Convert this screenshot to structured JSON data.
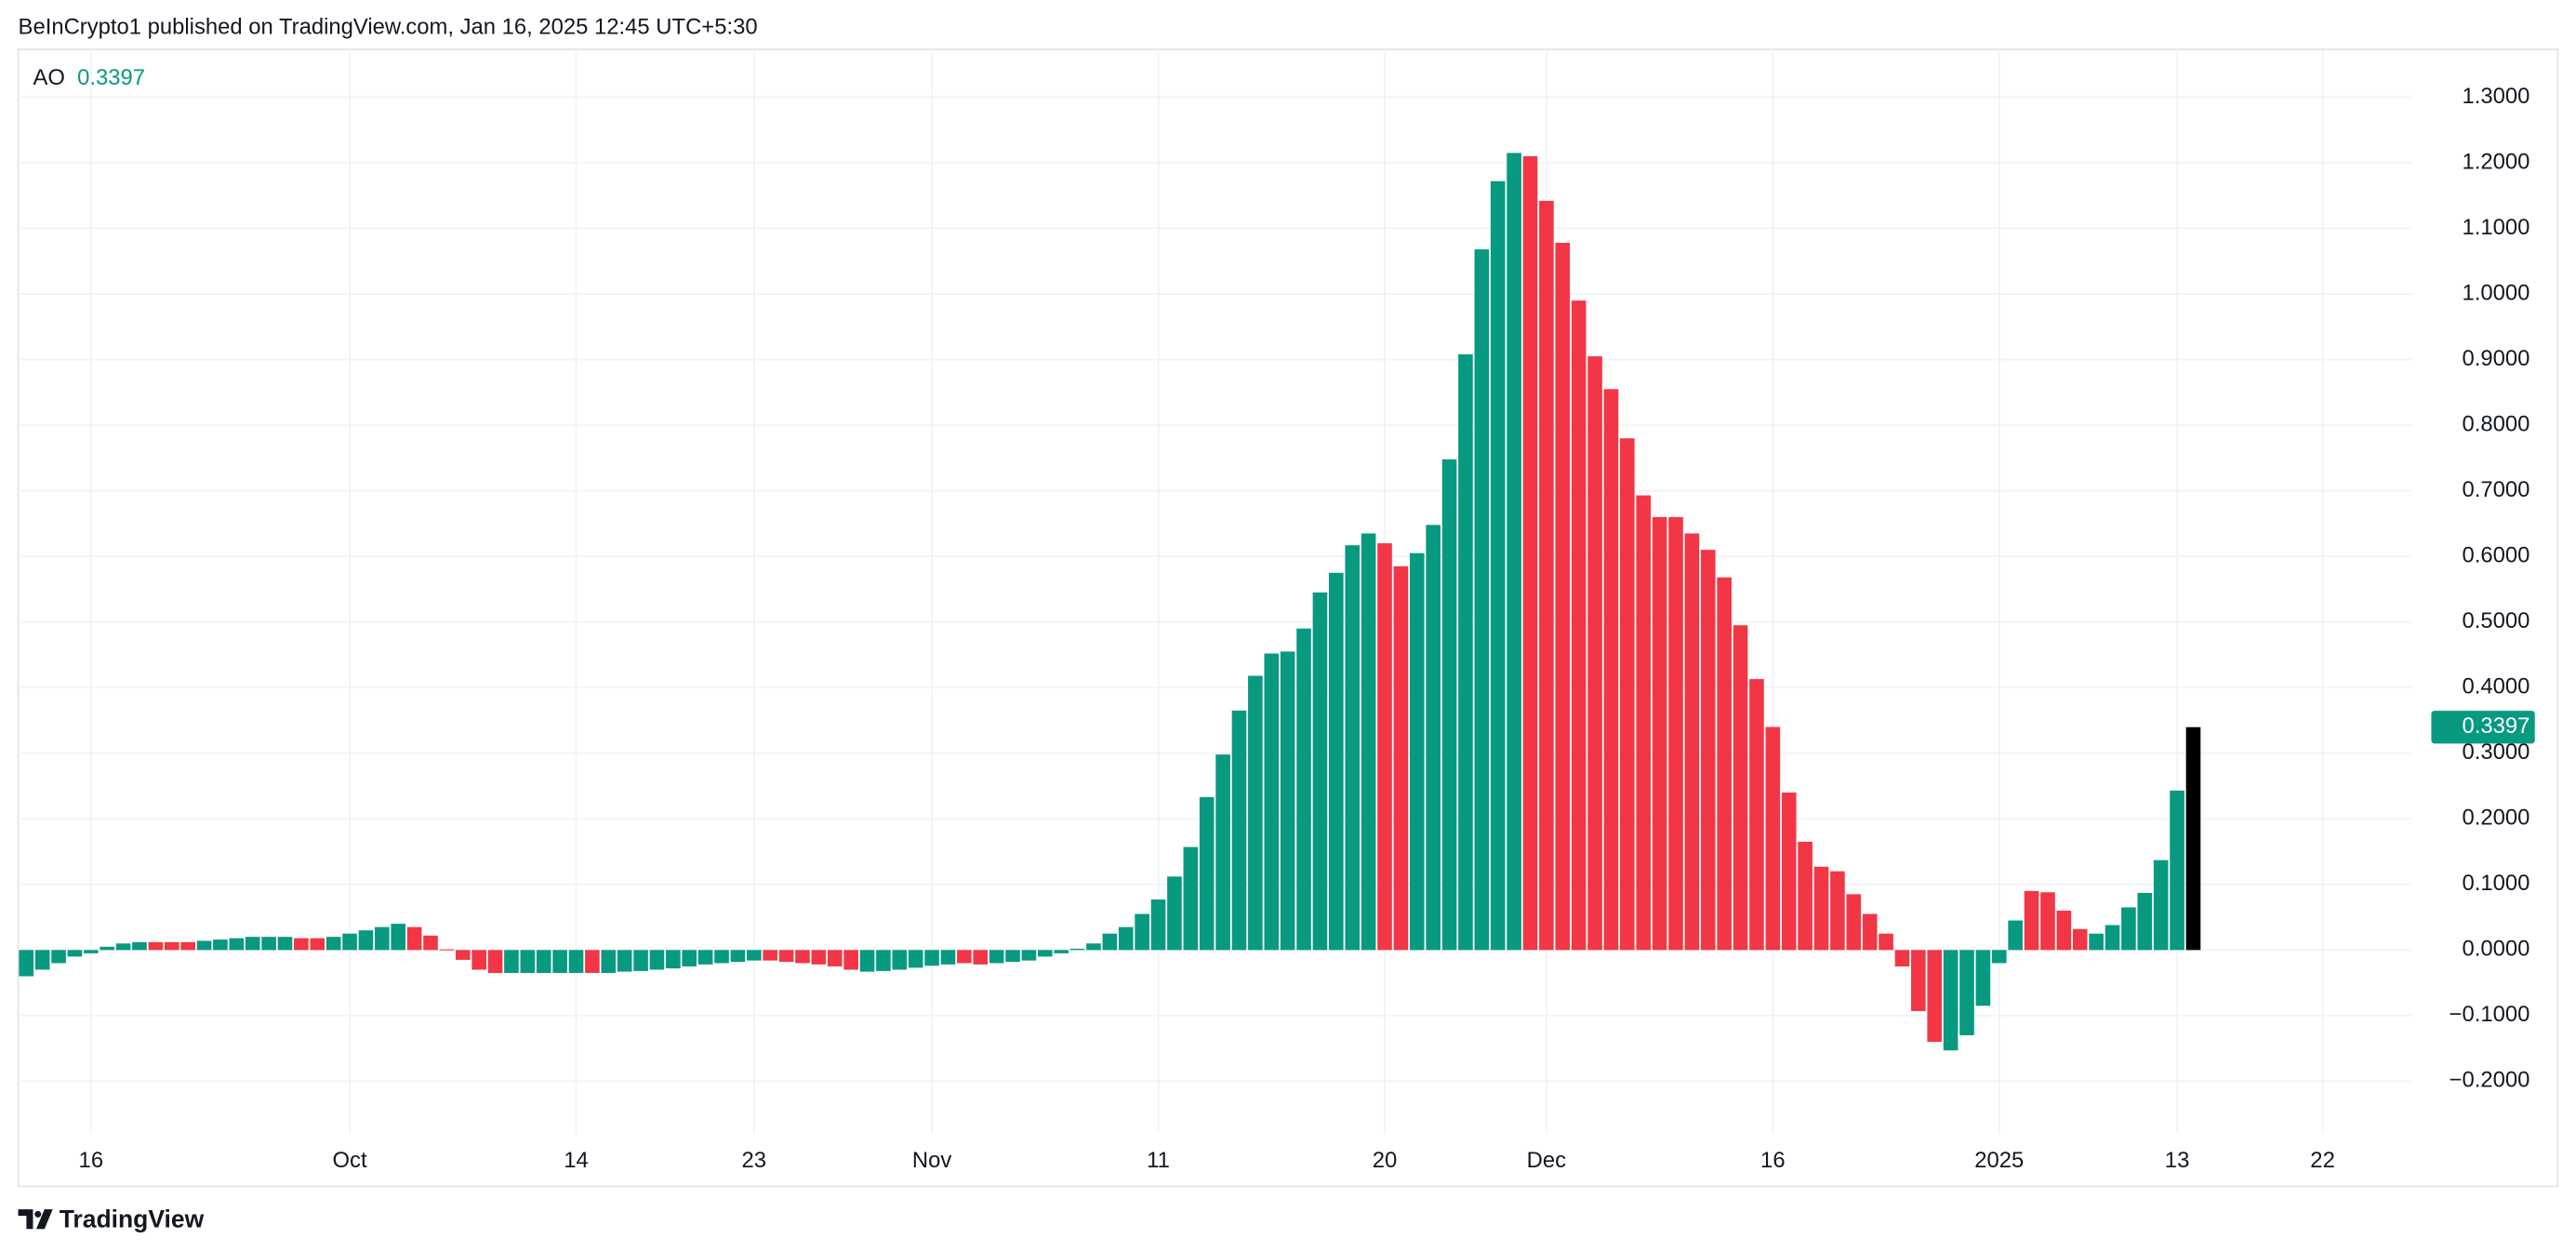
{
  "header": "BeInCrypto1 published on TradingView.com, Jan 16, 2025 12:45 UTC+5:30",
  "footer": "TradingView",
  "chart_data": {
    "type": "bar",
    "legend_label": "AO",
    "categories": [
      null,
      null,
      null,
      null,
      "16",
      null,
      null,
      null,
      null,
      null,
      null,
      null,
      null,
      null,
      null,
      null,
      null,
      null,
      null,
      null,
      "Oct",
      null,
      null,
      null,
      null,
      null,
      null,
      null,
      null,
      null,
      null,
      null,
      null,
      null,
      "14",
      null,
      null,
      null,
      null,
      null,
      null,
      null,
      null,
      null,
      null,
      "23",
      null,
      null,
      null,
      null,
      null,
      null,
      null,
      null,
      null,
      null,
      "Nov",
      null,
      null,
      null,
      null,
      null,
      null,
      null,
      null,
      null,
      null,
      null,
      null,
      null,
      "11",
      null,
      null,
      null,
      null,
      null,
      null,
      null,
      null,
      null,
      null,
      null,
      null,
      null,
      "20",
      null,
      null,
      null,
      null,
      null,
      null,
      null,
      null,
      null,
      "Dec",
      null,
      null,
      null,
      null,
      null,
      null,
      null,
      null,
      null,
      null,
      null,
      null,
      null,
      "16",
      null,
      null,
      null,
      null,
      null,
      null,
      null,
      null,
      null,
      null,
      null,
      null,
      null,
      "2025",
      null,
      null,
      null,
      null,
      null,
      null,
      null,
      null,
      null,
      null,
      "13",
      null,
      null,
      null,
      null,
      null,
      null,
      null,
      null,
      "22",
      null,
      null,
      null,
      null,
      null
    ],
    "values": [
      -0.04,
      -0.03,
      -0.02,
      -0.01,
      -0.005,
      0.005,
      0.01,
      0.012,
      0.012,
      0.012,
      0.012,
      0.014,
      0.016,
      0.018,
      0.02,
      0.02,
      0.02,
      0.018,
      0.018,
      0.02,
      0.025,
      0.03,
      0.035,
      0.04,
      0.035,
      0.022,
      0.001,
      -0.015,
      -0.03,
      -0.035,
      -0.035,
      -0.035,
      -0.035,
      -0.035,
      -0.035,
      -0.035,
      -0.035,
      -0.033,
      -0.032,
      -0.03,
      -0.028,
      -0.025,
      -0.022,
      -0.02,
      -0.018,
      -0.016,
      -0.016,
      -0.018,
      -0.02,
      -0.022,
      -0.025,
      -0.03,
      -0.033,
      -0.032,
      -0.03,
      -0.027,
      -0.024,
      -0.022,
      -0.02,
      -0.022,
      -0.02,
      -0.018,
      -0.016,
      -0.01,
      -0.005,
      0.002,
      0.01,
      0.025,
      0.035,
      0.055,
      0.077,
      0.112,
      0.157,
      0.233,
      0.298,
      0.365,
      0.418,
      0.452,
      0.455,
      0.49,
      0.545,
      0.575,
      0.617,
      0.635,
      0.62,
      0.585,
      0.605,
      0.648,
      0.748,
      0.908,
      1.068,
      1.172,
      1.215,
      1.21,
      1.142,
      1.078,
      0.99,
      0.905,
      0.855,
      0.78,
      0.693,
      0.66,
      0.66,
      0.635,
      0.61,
      0.568,
      0.495,
      0.413,
      0.34,
      0.24,
      0.165,
      0.127,
      0.12,
      0.085,
      0.055,
      0.025,
      -0.025,
      -0.093,
      -0.14,
      -0.153,
      -0.13,
      -0.085,
      -0.02,
      0.045,
      0.09,
      0.088,
      0.06,
      0.032,
      0.025,
      0.038,
      0.065,
      0.087,
      0.137,
      0.243,
      0.3397,
      null,
      null,
      null,
      null,
      null,
      null,
      null,
      null,
      null,
      null,
      null,
      null,
      null
    ],
    "colors": [
      "#089981",
      "#089981",
      "#089981",
      "#089981",
      "#089981",
      "#089981",
      "#089981",
      "#089981",
      "#f23645",
      "#f23645",
      "#f23645",
      "#089981",
      "#089981",
      "#089981",
      "#089981",
      "#089981",
      "#089981",
      "#f23645",
      "#f23645",
      "#089981",
      "#089981",
      "#089981",
      "#089981",
      "#089981",
      "#f23645",
      "#f23645",
      "#f23645",
      "#f23645",
      "#f23645",
      "#f23645",
      "#089981",
      "#089981",
      "#089981",
      "#089981",
      "#089981",
      "#f23645",
      "#089981",
      "#089981",
      "#089981",
      "#089981",
      "#089981",
      "#089981",
      "#089981",
      "#089981",
      "#089981",
      "#089981",
      "#f23645",
      "#f23645",
      "#f23645",
      "#f23645",
      "#f23645",
      "#f23645",
      "#089981",
      "#089981",
      "#089981",
      "#089981",
      "#089981",
      "#089981",
      "#f23645",
      "#f23645",
      "#089981",
      "#089981",
      "#089981",
      "#089981",
      "#089981",
      "#089981",
      "#089981",
      "#089981",
      "#089981",
      "#089981",
      "#089981",
      "#089981",
      "#089981",
      "#089981",
      "#089981",
      "#089981",
      "#089981",
      "#089981",
      "#089981",
      "#089981",
      "#089981",
      "#089981",
      "#089981",
      "#089981",
      "#f23645",
      "#f23645",
      "#089981",
      "#089981",
      "#089981",
      "#089981",
      "#089981",
      "#089981",
      "#089981",
      "#f23645",
      "#f23645",
      "#f23645",
      "#f23645",
      "#f23645",
      "#f23645",
      "#f23645",
      "#f23645",
      "#f23645",
      "#f23645",
      "#f23645",
      "#f23645",
      "#f23645",
      "#f23645",
      "#f23645",
      "#f23645",
      "#f23645",
      "#f23645",
      "#f23645",
      "#f23645",
      "#f23645",
      "#f23645",
      "#f23645",
      "#f23645",
      "#f23645",
      "#f23645",
      "#089981",
      "#089981",
      "#089981",
      "#089981",
      "#089981",
      "#f23645",
      "#f23645",
      "#f23645",
      "#f23645",
      "#089981",
      "#089981",
      "#089981",
      "#089981",
      "#089981",
      "#089981",
      null,
      null,
      null,
      null,
      null,
      null,
      null,
      null,
      null,
      null,
      null,
      null,
      null
    ],
    "last_value_color": "#089981",
    "ylim": [
      -0.28,
      1.373
    ],
    "yticks": [
      {
        "value": -0.2,
        "label": "−0.2000"
      },
      {
        "value": -0.1,
        "label": "−0.1000"
      },
      {
        "value": 0,
        "label": "0.0000"
      },
      {
        "value": 0.1,
        "label": "0.1000"
      },
      {
        "value": 0.2,
        "label": "0.2000"
      },
      {
        "value": 0.3,
        "label": "0.3000"
      },
      {
        "value": 0.4,
        "label": "0.4000"
      },
      {
        "value": 0.5,
        "label": "0.5000"
      },
      {
        "value": 0.6,
        "label": "0.6000"
      },
      {
        "value": 0.7,
        "label": "0.7000"
      },
      {
        "value": 0.8,
        "label": "0.8000"
      },
      {
        "value": 0.9,
        "label": "0.9000"
      },
      {
        "value": 1,
        "label": "1.0000"
      },
      {
        "value": 1.1,
        "label": "1.1000"
      },
      {
        "value": 1.2,
        "label": "1.2000"
      },
      {
        "value": 1.3,
        "label": "1.3000"
      }
    ],
    "grid": true
  }
}
